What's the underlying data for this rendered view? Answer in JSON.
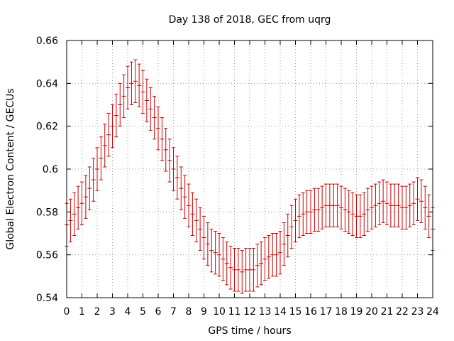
{
  "chart_data": {
    "type": "scatter",
    "title": "Day 138 of 2018, GEC from uqrg",
    "xlabel": "GPS time / hours",
    "ylabel": "Global Electron Content / GECUs",
    "xlim": [
      0,
      24
    ],
    "ylim": [
      0.54,
      0.66
    ],
    "xticks": [
      0,
      1,
      2,
      3,
      4,
      5,
      6,
      7,
      8,
      9,
      10,
      11,
      12,
      13,
      14,
      15,
      16,
      17,
      18,
      19,
      20,
      21,
      22,
      23,
      24
    ],
    "yticks": [
      0.54,
      0.56,
      0.58,
      0.6,
      0.62,
      0.64,
      0.66
    ],
    "ytick_labels": [
      "0.54",
      "0.56",
      "0.58",
      "0.6",
      "0.62",
      "0.64",
      "0.66"
    ],
    "grid": true,
    "color": "#cc0000",
    "error": 0.01,
    "x": [
      0.0,
      0.25,
      0.5,
      0.75,
      1.0,
      1.25,
      1.5,
      1.75,
      2.0,
      2.25,
      2.5,
      2.75,
      3.0,
      3.25,
      3.5,
      3.75,
      4.0,
      4.25,
      4.5,
      4.75,
      5.0,
      5.25,
      5.5,
      5.75,
      6.0,
      6.25,
      6.5,
      6.75,
      7.0,
      7.25,
      7.5,
      7.75,
      8.0,
      8.25,
      8.5,
      8.75,
      9.0,
      9.25,
      9.5,
      9.75,
      10.0,
      10.25,
      10.5,
      10.75,
      11.0,
      11.25,
      11.5,
      11.75,
      12.0,
      12.25,
      12.5,
      12.75,
      13.0,
      13.25,
      13.5,
      13.75,
      14.0,
      14.25,
      14.5,
      14.75,
      15.0,
      15.25,
      15.5,
      15.75,
      16.0,
      16.25,
      16.5,
      16.75,
      17.0,
      17.25,
      17.5,
      17.75,
      18.0,
      18.25,
      18.5,
      18.75,
      19.0,
      19.25,
      19.5,
      19.75,
      20.0,
      20.25,
      20.5,
      20.75,
      21.0,
      21.25,
      21.5,
      21.75,
      22.0,
      22.25,
      22.5,
      22.75,
      23.0,
      23.25,
      23.5,
      23.75,
      24.0
    ],
    "y": [
      0.574,
      0.576,
      0.579,
      0.582,
      0.584,
      0.587,
      0.591,
      0.595,
      0.6,
      0.605,
      0.611,
      0.616,
      0.62,
      0.625,
      0.63,
      0.634,
      0.638,
      0.64,
      0.641,
      0.639,
      0.636,
      0.632,
      0.628,
      0.624,
      0.619,
      0.614,
      0.609,
      0.604,
      0.6,
      0.596,
      0.591,
      0.587,
      0.583,
      0.579,
      0.576,
      0.572,
      0.568,
      0.565,
      0.562,
      0.561,
      0.56,
      0.558,
      0.556,
      0.554,
      0.553,
      0.553,
      0.552,
      0.553,
      0.553,
      0.553,
      0.555,
      0.556,
      0.558,
      0.559,
      0.56,
      0.56,
      0.561,
      0.565,
      0.569,
      0.573,
      0.576,
      0.578,
      0.579,
      0.58,
      0.58,
      0.581,
      0.581,
      0.582,
      0.583,
      0.583,
      0.583,
      0.583,
      0.582,
      0.581,
      0.58,
      0.579,
      0.578,
      0.578,
      0.579,
      0.581,
      0.582,
      0.583,
      0.584,
      0.585,
      0.584,
      0.583,
      0.583,
      0.583,
      0.582,
      0.582,
      0.583,
      0.584,
      0.586,
      0.585,
      0.582,
      0.578,
      0.572
    ]
  }
}
